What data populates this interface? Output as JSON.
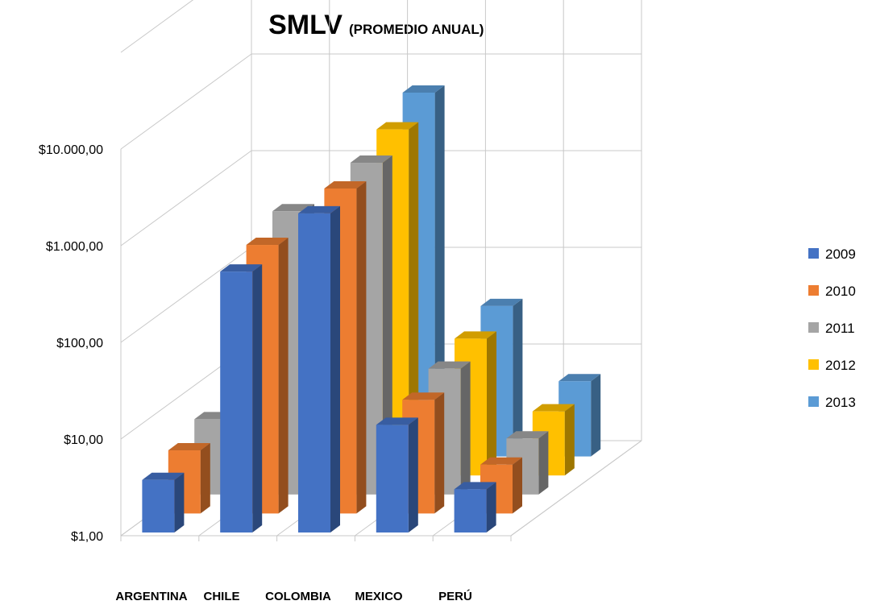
{
  "chart_data": {
    "type": "bar",
    "variant": "3d-clustered-column",
    "title": "SMLV",
    "subtitle": "(PROMEDIO ANUAL)",
    "categories": [
      "ARGENTINA",
      "CHILE",
      "COLOMBIA",
      "MEXICO",
      "PERÚ"
    ],
    "series": [
      {
        "name": "2009",
        "color": "#4472C4",
        "values": [
          3.5,
          500,
          2000,
          13,
          2.8
        ]
      },
      {
        "name": "2010",
        "color": "#ED7D31",
        "values": [
          4.5,
          600,
          2300,
          15,
          3.2
        ]
      },
      {
        "name": "2011",
        "color": "#A5A5A5",
        "values": [
          6,
          850,
          2700,
          20,
          3.8
        ]
      },
      {
        "name": "2012",
        "color": "#FFC000",
        "values": [
          null,
          null,
          3800,
          26,
          4.6
        ]
      },
      {
        "name": "2013",
        "color": "#5B9BD5",
        "values": [
          null,
          null,
          5800,
          36,
          6
        ]
      }
    ],
    "y_scale": "log",
    "ylim": [
      1,
      100000
    ],
    "y_ticks": [
      {
        "value": 1,
        "label": "$1,00"
      },
      {
        "value": 10,
        "label": "$10,00"
      },
      {
        "value": 100,
        "label": "$100,00"
      },
      {
        "value": 1000,
        "label": "$1.000,00"
      },
      {
        "value": 10000,
        "label": "$10.000,00"
      }
    ],
    "grid": true,
    "legend_position": "right"
  }
}
